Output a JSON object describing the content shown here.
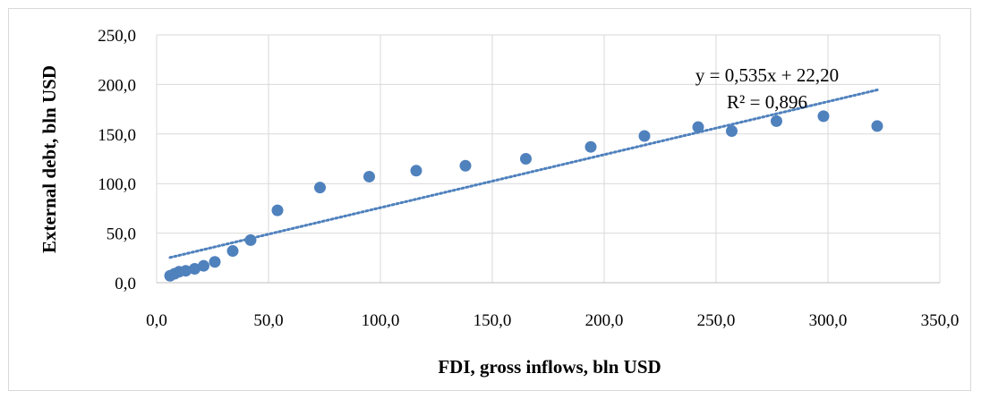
{
  "chart_data": {
    "type": "scatter",
    "xlabel": "FDI, gross inflows, bln USD",
    "ylabel": "External debt, bln USD",
    "xlim": [
      0,
      350
    ],
    "ylim": [
      0,
      250
    ],
    "x_ticks": [
      "0,0",
      "50,0",
      "100,0",
      "150,0",
      "200,0",
      "250,0",
      "300,0",
      "350,0"
    ],
    "y_ticks": [
      "0,0",
      "50,0",
      "100,0",
      "150,0",
      "200,0",
      "250,0"
    ],
    "grid": true,
    "marker_color": "#4f81bd",
    "trendline": {
      "type": "linear",
      "slope": 0.535,
      "intercept": 22.2,
      "x_range": [
        6,
        323
      ],
      "style": "dotted",
      "color": "#4f81bd",
      "equation": "y = 0,535x + 22,20",
      "r_squared": "R² = 0,896"
    },
    "points": [
      {
        "x": 6,
        "y": 7
      },
      {
        "x": 8,
        "y": 9
      },
      {
        "x": 10,
        "y": 11
      },
      {
        "x": 13,
        "y": 12
      },
      {
        "x": 17,
        "y": 14
      },
      {
        "x": 21,
        "y": 17
      },
      {
        "x": 26,
        "y": 21
      },
      {
        "x": 34,
        "y": 32
      },
      {
        "x": 42,
        "y": 43
      },
      {
        "x": 54,
        "y": 73
      },
      {
        "x": 73,
        "y": 96
      },
      {
        "x": 95,
        "y": 107
      },
      {
        "x": 116,
        "y": 113
      },
      {
        "x": 138,
        "y": 118
      },
      {
        "x": 165,
        "y": 125
      },
      {
        "x": 194,
        "y": 137
      },
      {
        "x": 218,
        "y": 148
      },
      {
        "x": 242,
        "y": 157
      },
      {
        "x": 257,
        "y": 153
      },
      {
        "x": 277,
        "y": 163
      },
      {
        "x": 298,
        "y": 168
      },
      {
        "x": 322,
        "y": 158
      }
    ]
  }
}
